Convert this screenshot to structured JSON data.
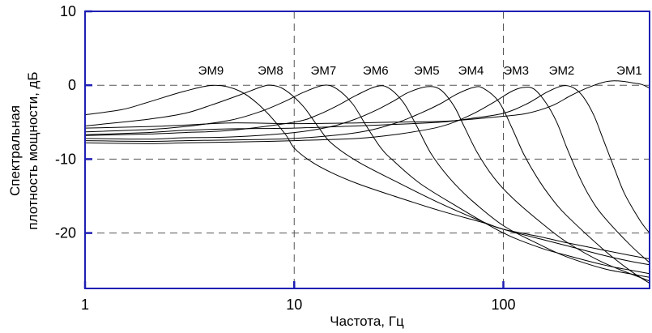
{
  "chart_data": {
    "type": "line",
    "xscale": "log",
    "xlim": [
      1,
      500
    ],
    "ylim": [
      -27.5,
      10
    ],
    "xlabel": "Частота, Гц",
    "ylabel_line1": "Спектральная",
    "ylabel_line2": "плотность мощности, дБ",
    "x_ticks": [
      1,
      10,
      100
    ],
    "x_tick_labels": [
      "1",
      "10",
      "100"
    ],
    "y_ticks": [
      10,
      0,
      -10,
      -20
    ],
    "y_tick_labels": [
      "10",
      "0",
      "-10",
      "-20"
    ],
    "grid": "dashed, at x = 10 and 100, y = 0, -10 and -20",
    "colors": {
      "axis": "#1f1fb4",
      "line": "#000000",
      "grid": "#555555"
    },
    "series": [
      {
        "name": "ЭМ9",
        "label_x": 4.0,
        "x": [
          1,
          1.5,
          2,
          3,
          4.2,
          5.5,
          7,
          9,
          10,
          12,
          15,
          20,
          30,
          50,
          80,
          100,
          150,
          200,
          300,
          400,
          500
        ],
        "y": [
          -4,
          -3.3,
          -2.3,
          -0.8,
          0,
          -0.8,
          -3,
          -6.5,
          -8.5,
          -10.3,
          -11.8,
          -13.3,
          -15,
          -17,
          -18.6,
          -19.5,
          -20.5,
          -21.3,
          -22.3,
          -23,
          -23.5
        ]
      },
      {
        "name": "ЭМ8",
        "label_x": 7.7,
        "x": [
          1,
          2,
          3,
          4,
          5.5,
          7,
          7.8,
          9,
          11,
          13,
          15,
          20,
          30,
          50,
          80,
          100,
          150,
          200,
          300,
          400,
          500
        ],
        "y": [
          -5.5,
          -4.6,
          -3.8,
          -2.7,
          -1.3,
          -0.2,
          0,
          -0.6,
          -2.8,
          -5.6,
          -7.8,
          -10.3,
          -12.9,
          -16,
          -18.5,
          -19.5,
          -20.8,
          -21.7,
          -23,
          -23.8,
          -24.3
        ]
      },
      {
        "name": "ЭМ7",
        "label_x": 13.8,
        "x": [
          1,
          2,
          3,
          5,
          7,
          9,
          11,
          13.8,
          16,
          19,
          22,
          26,
          30,
          40,
          60,
          100,
          150,
          200,
          300,
          400,
          500
        ],
        "y": [
          -6.3,
          -6,
          -5.6,
          -4.7,
          -3.5,
          -2.2,
          -1,
          0,
          -0.5,
          -2.5,
          -5.4,
          -8.5,
          -10.3,
          -13.3,
          -16.4,
          -20,
          -22,
          -23,
          -24.3,
          -25,
          -25.5
        ]
      },
      {
        "name": "ЭМ6",
        "label_x": 24.5,
        "x": [
          1,
          2,
          3,
          5,
          10,
          13,
          16,
          20,
          24.5,
          28,
          33,
          38,
          45,
          55,
          70,
          100,
          150,
          200,
          300,
          400,
          500
        ],
        "y": [
          -6.8,
          -6.6,
          -6.4,
          -6.1,
          -5,
          -4,
          -2.8,
          -1.3,
          -0.2,
          -0.3,
          -2.2,
          -5.2,
          -9.2,
          -12.5,
          -15.5,
          -19,
          -21.6,
          -23.2,
          -24.8,
          -25.5,
          -26
        ]
      },
      {
        "name": "ЭМ5",
        "label_x": 43,
        "x": [
          1,
          2,
          3,
          5,
          10,
          15,
          20,
          25,
          30,
          35,
          43,
          50,
          58,
          65,
          75,
          90,
          110,
          150,
          200,
          300,
          500
        ],
        "y": [
          -7.2,
          -7.3,
          -7.1,
          -7,
          -6.4,
          -5.6,
          -4.5,
          -3.3,
          -2.1,
          -1,
          -0.2,
          -0.6,
          -2.8,
          -5.6,
          -9.1,
          -12.5,
          -15.2,
          -18.5,
          -21.2,
          -24,
          -26.5
        ]
      },
      {
        "name": "ЭМ4",
        "label_x": 70,
        "x": [
          1,
          2,
          3,
          5,
          10,
          20,
          30,
          40,
          50,
          60,
          72,
          80,
          95,
          110,
          125,
          145,
          170,
          200,
          300,
          400,
          500
        ],
        "y": [
          -7.5,
          -7.6,
          -7.5,
          -7.4,
          -7.2,
          -6.4,
          -5.2,
          -3.8,
          -2.5,
          -1.2,
          -0.3,
          -0.4,
          -2.2,
          -5.8,
          -9.3,
          -12.5,
          -15.3,
          -17.6,
          -22.2,
          -25,
          -26.8
        ]
      },
      {
        "name": "ЭМ3",
        "label_x": 115,
        "x": [
          1,
          2,
          3,
          5,
          10,
          20,
          30,
          50,
          70,
          90,
          110,
          125,
          140,
          160,
          180,
          200,
          230,
          260,
          300,
          400,
          500
        ],
        "y": [
          -7.8,
          -7.9,
          -7.8,
          -7.7,
          -7.5,
          -7.2,
          -6.7,
          -5.6,
          -4,
          -2.3,
          -0.8,
          -0.3,
          -0.5,
          -2.4,
          -5,
          -8.3,
          -12.3,
          -15.2,
          -17.7,
          -21.5,
          -24
        ]
      },
      {
        "name": "ЭМ2",
        "label_x": 190,
        "x": [
          1,
          2,
          3,
          5,
          10,
          20,
          30,
          50,
          70,
          100,
          130,
          160,
          190,
          215,
          240,
          270,
          300,
          340,
          380,
          450,
          500
        ],
        "y": [
          -6.7,
          -6.4,
          -6.1,
          -5.9,
          -5.8,
          -5.5,
          -5.3,
          -5,
          -4.5,
          -3.8,
          -2.5,
          -1,
          -0.1,
          -0.3,
          -1.5,
          -4,
          -7.3,
          -11.3,
          -14.7,
          -18.3,
          -20
        ]
      },
      {
        "name": "ЭМ1",
        "label_x": 400,
        "x": [
          1,
          2,
          3,
          5,
          10,
          20,
          30,
          50,
          70,
          100,
          130,
          170,
          210,
          250,
          300,
          340,
          380,
          420,
          460,
          500
        ],
        "y": [
          -5.8,
          -5.6,
          -5.4,
          -5.1,
          -5.2,
          -5.1,
          -5,
          -4.9,
          -4.6,
          -4.2,
          -3.8,
          -2.8,
          -1.4,
          -0.4,
          0.4,
          0.6,
          0.5,
          0.3,
          0.1,
          -0.4
        ]
      }
    ]
  }
}
